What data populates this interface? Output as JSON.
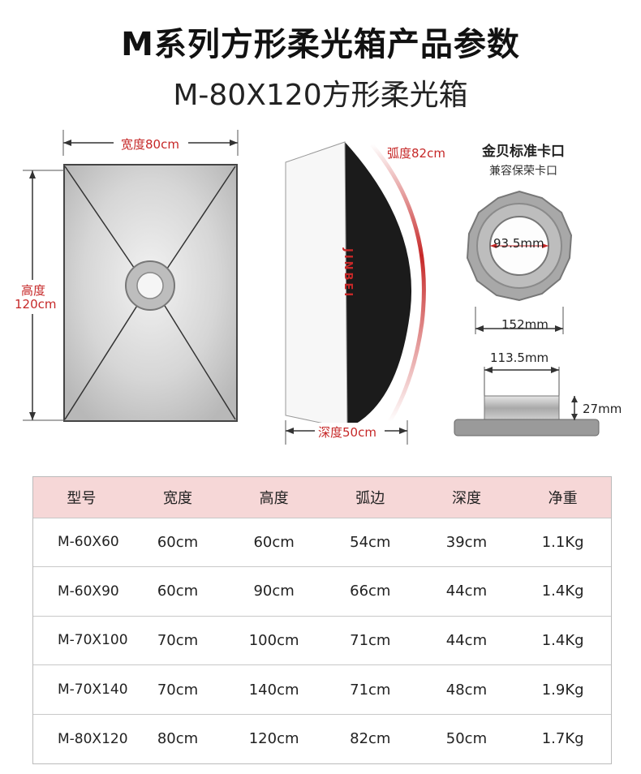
{
  "page": {
    "title": "M系列方形柔光箱产品参数",
    "subtitle": "M-80X120方形柔光箱"
  },
  "diagram": {
    "width_label": "宽度80cm",
    "height_label_line1": "高度",
    "height_label_line2": "120cm",
    "arc_label": "弧度82cm",
    "depth_label": "深度50cm",
    "brand_text": "JINBEI",
    "mount_title": "金贝标准卡口",
    "mount_subtitle": "兼容保荣卡口",
    "inner_diameter": "93.5mm",
    "outer_diameter": "152mm",
    "side_width": "113.5mm",
    "side_height": "27mm"
  },
  "table": {
    "headers": [
      "型号",
      "宽度",
      "高度",
      "弧边",
      "深度",
      "净重"
    ],
    "rows": [
      [
        "M-60X60",
        "60cm",
        "60cm",
        "54cm",
        "39cm",
        "1.1Kg"
      ],
      [
        "M-60X90",
        "60cm",
        "90cm",
        "66cm",
        "44cm",
        "1.4Kg"
      ],
      [
        "M-70X100",
        "70cm",
        "100cm",
        "71cm",
        "44cm",
        "1.4Kg"
      ],
      [
        "M-70X140",
        "70cm",
        "140cm",
        "71cm",
        "48cm",
        "1.9Kg"
      ],
      [
        "M-80X120",
        "80cm",
        "120cm",
        "82cm",
        "50cm",
        "1.7Kg"
      ]
    ]
  },
  "colors": {
    "accent_red": "#c62828",
    "header_pink": "#f6d7d7"
  }
}
